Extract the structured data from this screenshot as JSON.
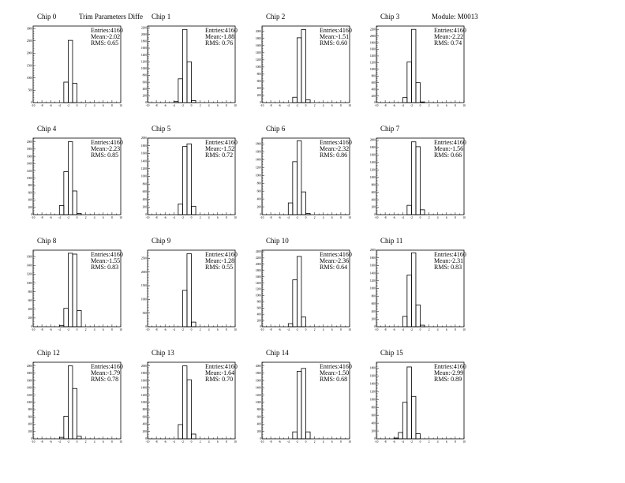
{
  "header": {
    "title": "Trim Parameters Diffe",
    "module": "Module: M0013"
  },
  "chart_data": [
    {
      "type": "bar",
      "title": "Chip 0",
      "xlim": [
        -10,
        10
      ],
      "ylim": [
        0,
        3100
      ],
      "ytick_step": 500,
      "bin_start": -3,
      "values": [
        830,
        2520,
        780
      ],
      "stats": {
        "entries": "Entries:4160",
        "mean": "Mean:-2.02",
        "rms": "RMS: 0.65"
      }
    },
    {
      "type": "bar",
      "title": "Chip 1",
      "xlim": [
        -10,
        10
      ],
      "ylim": [
        0,
        2250
      ],
      "ytick_step": 200,
      "bin_start": -4,
      "values": [
        30,
        700,
        2150,
        1200,
        60
      ],
      "stats": {
        "entries": "Entries:4160",
        "mean": "Mean:-1.88",
        "rms": "RMS: 0.76"
      }
    },
    {
      "type": "bar",
      "title": "Chip 2",
      "xlim": [
        -10,
        10
      ],
      "ylim": [
        0,
        2150
      ],
      "ytick_step": 200,
      "bin_start": -3,
      "values": [
        150,
        1820,
        2050,
        80
      ],
      "stats": {
        "entries": "Entries:4160",
        "mean": "Mean:-1.51",
        "rms": "RMS: 0.60"
      }
    },
    {
      "type": "bar",
      "title": "Chip 3",
      "xlim": [
        -10,
        10
      ],
      "ylim": [
        0,
        2300
      ],
      "ytick_step": 200,
      "bin_start": -4,
      "values": [
        150,
        1220,
        2200,
        600,
        20
      ],
      "stats": {
        "entries": "Entries:4160",
        "mean": "Mean:-2.22",
        "rms": "RMS: 0.74"
      }
    },
    {
      "type": "bar",
      "title": "Chip 4",
      "xlim": [
        -10,
        10
      ],
      "ylim": [
        0,
        2100
      ],
      "ytick_step": 200,
      "bin_start": -4,
      "values": [
        250,
        1180,
        2000,
        650,
        30
      ],
      "stats": {
        "entries": "Entries:4160",
        "mean": "Mean:-2.23",
        "rms": "RMS: 0.85"
      }
    },
    {
      "type": "bar",
      "title": "Chip 5",
      "xlim": [
        -10,
        10
      ],
      "ylim": [
        0,
        2000
      ],
      "ytick_step": 200,
      "bin_start": -3,
      "values": [
        280,
        1780,
        1850,
        220
      ],
      "stats": {
        "entries": "Entries:4160",
        "mean": "Mean:-1.52",
        "rms": "RMS: 0.72"
      }
    },
    {
      "type": "bar",
      "title": "Chip 6",
      "xlim": [
        -10,
        10
      ],
      "ylim": [
        0,
        1950
      ],
      "ytick_step": 200,
      "bin_start": -4,
      "values": [
        300,
        1350,
        1880,
        580,
        30
      ],
      "stats": {
        "entries": "Entries:4160",
        "mean": "Mean:-2.32",
        "rms": "RMS: 0.86"
      }
    },
    {
      "type": "bar",
      "title": "Chip 7",
      "xlim": [
        -10,
        10
      ],
      "ylim": [
        0,
        2050
      ],
      "ytick_step": 200,
      "bin_start": -3,
      "values": [
        250,
        1950,
        1820,
        130
      ],
      "stats": {
        "entries": "Entries:4160",
        "mean": "Mean:-1.56",
        "rms": "RMS: 0.66"
      }
    },
    {
      "type": "bar",
      "title": "Chip 8",
      "xlim": [
        -10,
        10
      ],
      "ylim": [
        0,
        1750
      ],
      "ytick_step": 200,
      "bin_start": -4,
      "values": [
        30,
        420,
        1680,
        1660,
        370
      ],
      "stats": {
        "entries": "Entries:4160",
        "mean": "Mean:-1.55",
        "rms": "RMS: 0.83"
      }
    },
    {
      "type": "bar",
      "title": "Chip 9",
      "xlim": [
        -10,
        10
      ],
      "ylim": [
        0,
        2800
      ],
      "ytick_step": 500,
      "bin_start": -2,
      "values": [
        1330,
        2670,
        170
      ],
      "stats": {
        "entries": "Entries:4160",
        "mean": "Mean:-1.28",
        "rms": "RMS: 0.55"
      }
    },
    {
      "type": "bar",
      "title": "Chip 10",
      "xlim": [
        -10,
        10
      ],
      "ylim": [
        0,
        2450
      ],
      "ytick_step": 200,
      "bin_start": -4,
      "values": [
        100,
        1500,
        2250,
        310
      ],
      "stats": {
        "entries": "Entries:4160",
        "mean": "Mean:-2.36",
        "rms": "RMS: 0.64"
      }
    },
    {
      "type": "bar",
      "title": "Chip 11",
      "xlim": [
        -10,
        10
      ],
      "ylim": [
        0,
        2000
      ],
      "ytick_step": 200,
      "bin_start": -4,
      "values": [
        270,
        1350,
        1930,
        570,
        40
      ],
      "stats": {
        "entries": "Entries:4160",
        "mean": "Mean:-2.31",
        "rms": "RMS: 0.83"
      }
    },
    {
      "type": "bar",
      "title": "Chip 12",
      "xlim": [
        -10,
        10
      ],
      "ylim": [
        0,
        2100
      ],
      "ytick_step": 200,
      "bin_start": -4,
      "values": [
        40,
        620,
        2000,
        1380,
        70
      ],
      "stats": {
        "entries": "Entries:4160",
        "mean": "Mean:-1.79",
        "rms": "RMS: 0.78"
      }
    },
    {
      "type": "bar",
      "title": "Chip 13",
      "xlim": [
        -10,
        10
      ],
      "ylim": [
        0,
        2100
      ],
      "ytick_step": 200,
      "bin_start": -3,
      "values": [
        390,
        2000,
        1620,
        130
      ],
      "stats": {
        "entries": "Entries:4160",
        "mean": "Mean:-1.64",
        "rms": "RMS: 0.70"
      }
    },
    {
      "type": "bar",
      "title": "Chip 14",
      "xlim": [
        -10,
        10
      ],
      "ylim": [
        0,
        2100
      ],
      "ytick_step": 200,
      "bin_start": -3,
      "values": [
        190,
        1850,
        1930,
        190
      ],
      "stats": {
        "entries": "Entries:4160",
        "mean": "Mean:-1.50",
        "rms": "RMS: 0.68"
      }
    },
    {
      "type": "bar",
      "title": "Chip 15",
      "xlim": [
        -10,
        10
      ],
      "ylim": [
        0,
        1950
      ],
      "ytick_step": 200,
      "bin_start": -6,
      "values": [
        20,
        160,
        930,
        1830,
        1080,
        130
      ],
      "stats": {
        "entries": "Entries:4160",
        "mean": "Mean:-2.99",
        "rms": "RMS: 0.89"
      }
    }
  ]
}
